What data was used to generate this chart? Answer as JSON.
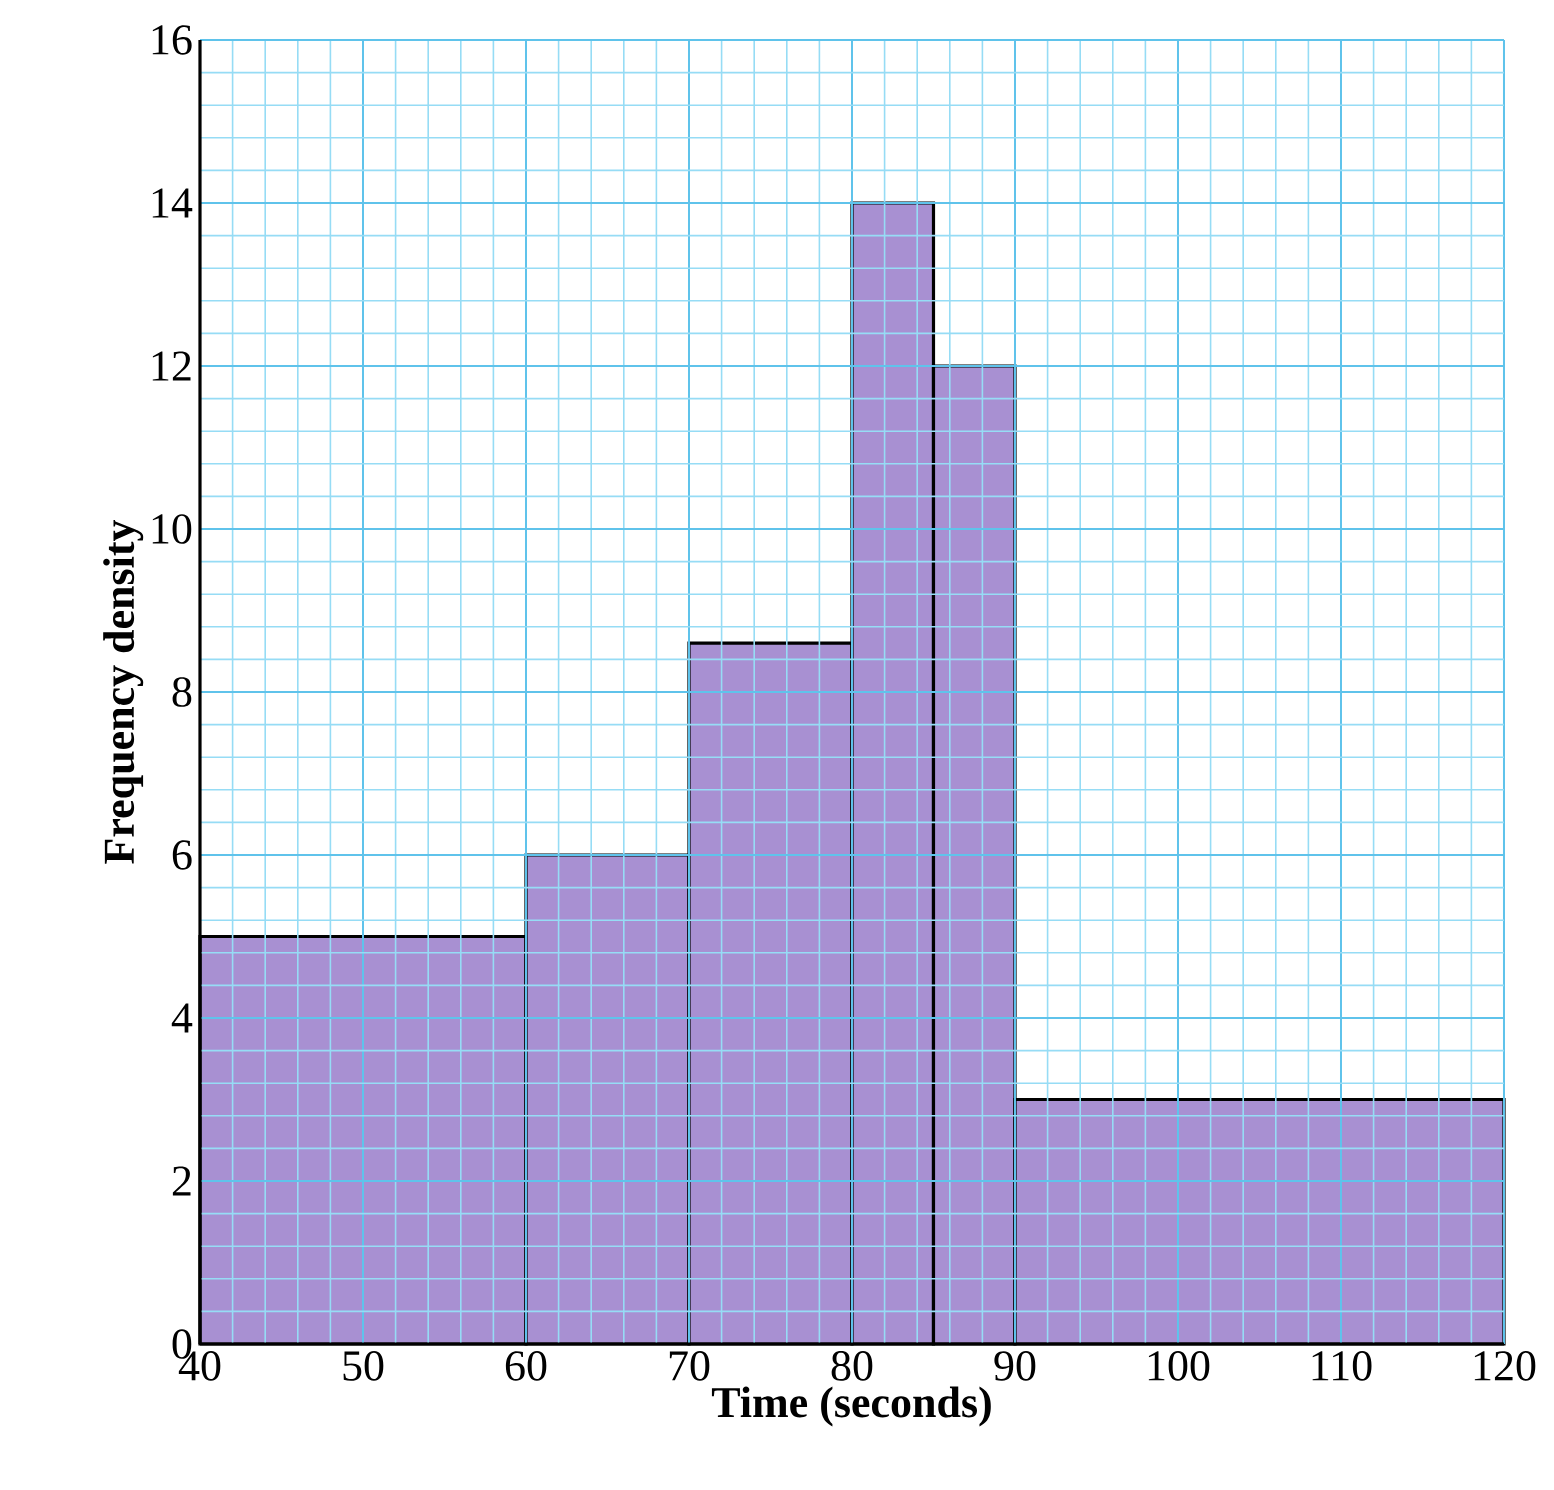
{
  "chart_data": {
    "type": "histogram",
    "xlabel": "Time (seconds)",
    "ylabel": "Frequency density",
    "bins": [
      40,
      60,
      70,
      80,
      85,
      90,
      120
    ],
    "values": [
      5,
      6,
      8.6,
      14,
      12,
      3
    ],
    "color": "#a890d2",
    "xlim": [
      40,
      120
    ],
    "ylim": [
      0,
      16
    ],
    "xticks": [
      40,
      {
        "value": 42,
        "label": null
      },
      {
        "value": 44,
        "label": null
      },
      {
        "value": 46,
        "label": null
      },
      {
        "value": 48,
        "label": null
      },
      50,
      {
        "value": 52,
        "label": null
      },
      {
        "value": 54,
        "label": null
      },
      {
        "value": 56,
        "label": null
      },
      {
        "value": 58,
        "label": null
      },
      60,
      {
        "value": 62,
        "label": null
      },
      {
        "value": 64,
        "label": null
      },
      {
        "value": 66,
        "label": null
      },
      {
        "value": 68,
        "label": null
      },
      70,
      {
        "value": 72,
        "label": null
      },
      {
        "value": 74,
        "label": null
      },
      {
        "value": 76,
        "label": null
      },
      {
        "value": 78,
        "label": null
      },
      80,
      {
        "value": 82,
        "label": null
      },
      {
        "value": 84,
        "label": null
      },
      {
        "value": 86,
        "label": null
      },
      {
        "value": 88,
        "label": null
      },
      90,
      {
        "value": 92,
        "label": null
      },
      {
        "value": 94,
        "label": null
      },
      {
        "value": 96,
        "label": null
      },
      {
        "value": 98,
        "label": null
      },
      100,
      {
        "value": 102,
        "label": null
      },
      {
        "value": 104,
        "label": null
      },
      {
        "value": 106,
        "label": null
      },
      {
        "value": 108,
        "label": null
      },
      110,
      {
        "value": 112,
        "label": null
      },
      {
        "value": 114,
        "label": null
      },
      {
        "value": 116,
        "label": null
      },
      {
        "value": 118,
        "label": null
      },
      120
    ],
    "yticks": [
      0,
      {
        "value": 0.4,
        "label": null
      },
      {
        "value": 0.8,
        "label": null
      },
      {
        "value": 1.2,
        "label": null
      },
      {
        "value": 1.6,
        "label": null
      },
      2,
      {
        "value": 2.4,
        "label": null
      },
      {
        "value": 2.8,
        "label": null
      },
      {
        "value": 3.2,
        "label": null
      },
      {
        "value": 3.6,
        "label": null
      },
      4,
      {
        "value": 4.4,
        "label": null
      },
      {
        "value": 4.8,
        "label": null
      },
      {
        "value": 5.2,
        "label": null
      },
      {
        "value": 5.6,
        "label": null
      },
      6,
      {
        "value": 6.4,
        "label": null
      },
      {
        "value": 6.8,
        "label": null
      },
      {
        "value": 7.2,
        "label": null
      },
      {
        "value": 7.6,
        "label": null
      },
      8,
      {
        "value": 8.4,
        "label": null
      },
      {
        "value": 8.8,
        "label": null
      },
      {
        "value": 9.2,
        "label": null
      },
      {
        "value": 9.6,
        "label": null
      },
      10,
      {
        "value": 10.4,
        "label": null
      },
      {
        "value": 10.8,
        "label": null
      },
      {
        "value": 11.2,
        "label": null
      },
      {
        "value": 11.6,
        "label": null
      },
      12,
      {
        "value": 12.4,
        "label": null
      },
      {
        "value": 12.8,
        "label": null
      },
      {
        "value": 13.2,
        "label": null
      },
      {
        "value": 13.6,
        "label": null
      },
      14,
      {
        "value": 14.4,
        "label": null
      },
      {
        "value": 14.8,
        "label": null
      },
      {
        "value": 15.2,
        "label": null
      },
      {
        "value": 15.6,
        "label": null
      },
      16
    ],
    "grid": true
  }
}
